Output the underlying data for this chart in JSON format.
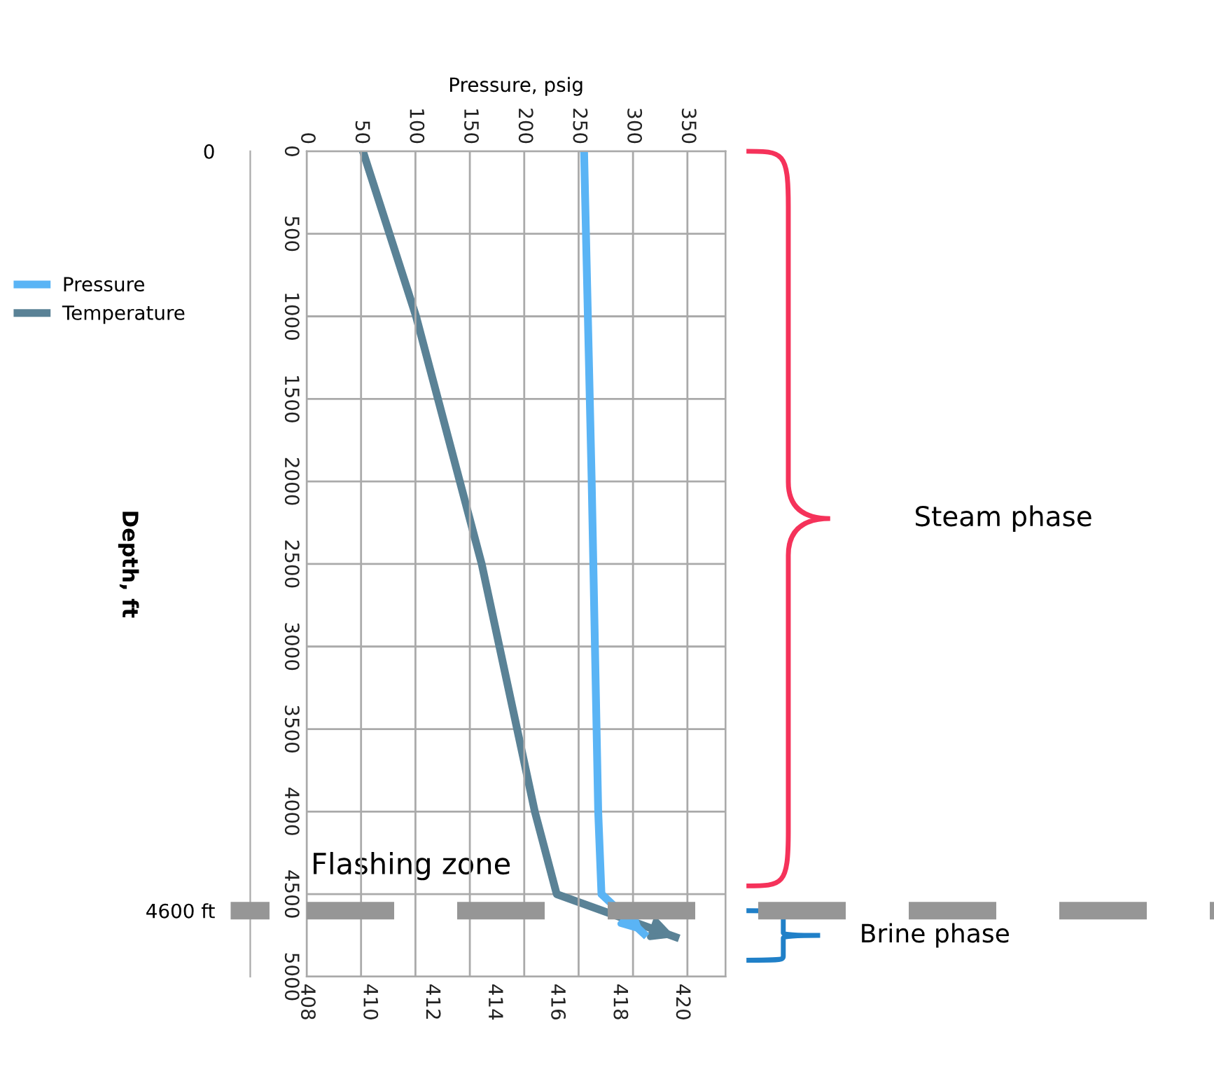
{
  "chart_data": {
    "type": "line",
    "x2label": "Pressure, psig",
    "y2label": "Depth, ft",
    "ylim": [
      5000,
      0
    ],
    "yticks": [
      0,
      500,
      1000,
      1500,
      2000,
      2500,
      3000,
      3500,
      4000,
      4500,
      5000
    ],
    "xlim": [
      408,
      421.4
    ],
    "xticks": [
      408,
      410,
      412,
      414,
      416,
      418,
      420
    ],
    "x2lim": [
      0,
      385
    ],
    "x2ticks": [
      0,
      50,
      100,
      150,
      200,
      250,
      300,
      350
    ],
    "y2lim": [
      5000,
      0
    ],
    "y2ticks": [
      0,
      {
        "value": 4600,
        "label": "4600 ft"
      }
    ],
    "grid": true,
    "legend": "left",
    "marker": "none",
    "line_style": "solid",
    "series": [
      {
        "name": "Pressure",
        "color": "#5ab4f5",
        "axis": "x2",
        "x": [
          255,
          262,
          268,
          271,
          310
        ],
        "values": [
          0,
          2000,
          4000,
          4500,
          4740
        ]
      },
      {
        "name": "Temperature",
        "color": "#5a8296",
        "x": [
          409.8,
          411.5,
          413.6,
          415.3,
          416.0,
          419.8
        ],
        "values": [
          0,
          1000,
          2500,
          4000,
          4500,
          4760
        ]
      }
    ],
    "ref_lines": [
      {
        "axis": "y",
        "value": 4600,
        "color": "#969696",
        "line_style": "dashed"
      }
    ],
    "annotations": [
      "Flashing zone",
      "Steam phase",
      "Brine phase"
    ]
  }
}
